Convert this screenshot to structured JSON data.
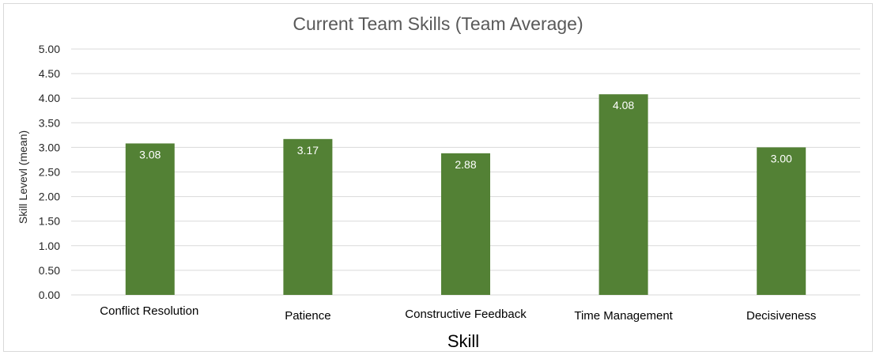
{
  "chart_data": {
    "type": "bar",
    "title": "Current Team Skills (Team Average)",
    "xlabel": "Skill",
    "ylabel": "Skill Levevl (mean)",
    "categories": [
      "Conflict Resolution",
      "Patience",
      "Constructive Feedback",
      "Time Management",
      "Decisiveness"
    ],
    "values": [
      3.08,
      3.17,
      2.88,
      4.08,
      3.0
    ],
    "data_labels": [
      "3.08",
      "3.17",
      "2.88",
      "4.08",
      "3.00"
    ],
    "ylim": [
      0,
      5
    ],
    "yticks": [
      "0.00",
      "0.50",
      "1.00",
      "1.50",
      "2.00",
      "2.50",
      "3.00",
      "3.50",
      "4.00",
      "4.50",
      "5.00"
    ],
    "grid": true,
    "legend": "none",
    "bar_color": "#538135",
    "grid_color": "#d9d9d9"
  }
}
